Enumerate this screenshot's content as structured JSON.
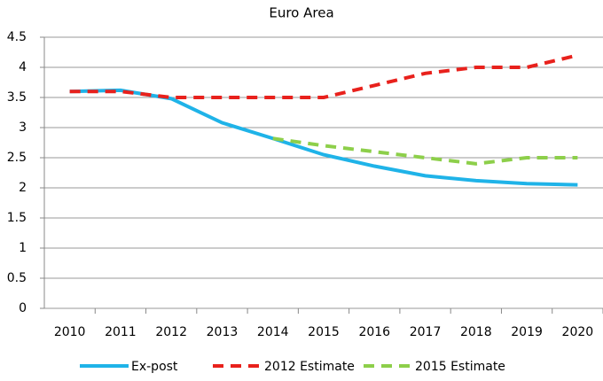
{
  "chart_data": {
    "type": "line",
    "title": "Euro Area",
    "categories": [
      "2010",
      "2011",
      "2012",
      "2013",
      "2014",
      "2015",
      "2016",
      "2017",
      "2018",
      "2019",
      "2020"
    ],
    "series": [
      {
        "name": "Ex-post",
        "color": "#1fb3e8",
        "dash": "none",
        "values": [
          3.6,
          3.62,
          3.48,
          3.08,
          2.82,
          2.55,
          2.36,
          2.2,
          2.12,
          2.07,
          2.05
        ]
      },
      {
        "name": "2012 Estimate",
        "color": "#e8211c",
        "dash": "12 8",
        "values": [
          3.6,
          3.6,
          3.5,
          3.5,
          3.5,
          3.5,
          3.7,
          3.9,
          4.0,
          4.0,
          4.2
        ]
      },
      {
        "name": "2015 Estimate",
        "color": "#8dcf4a",
        "dash": "12 8",
        "values": [
          null,
          null,
          null,
          null,
          2.82,
          2.7,
          2.6,
          2.5,
          2.4,
          2.5,
          2.5
        ]
      }
    ],
    "ylim": [
      0,
      4.5
    ],
    "yticks": [
      0,
      0.5,
      1,
      1.5,
      2,
      2.5,
      3,
      3.5,
      4,
      4.5
    ],
    "grid": true
  }
}
